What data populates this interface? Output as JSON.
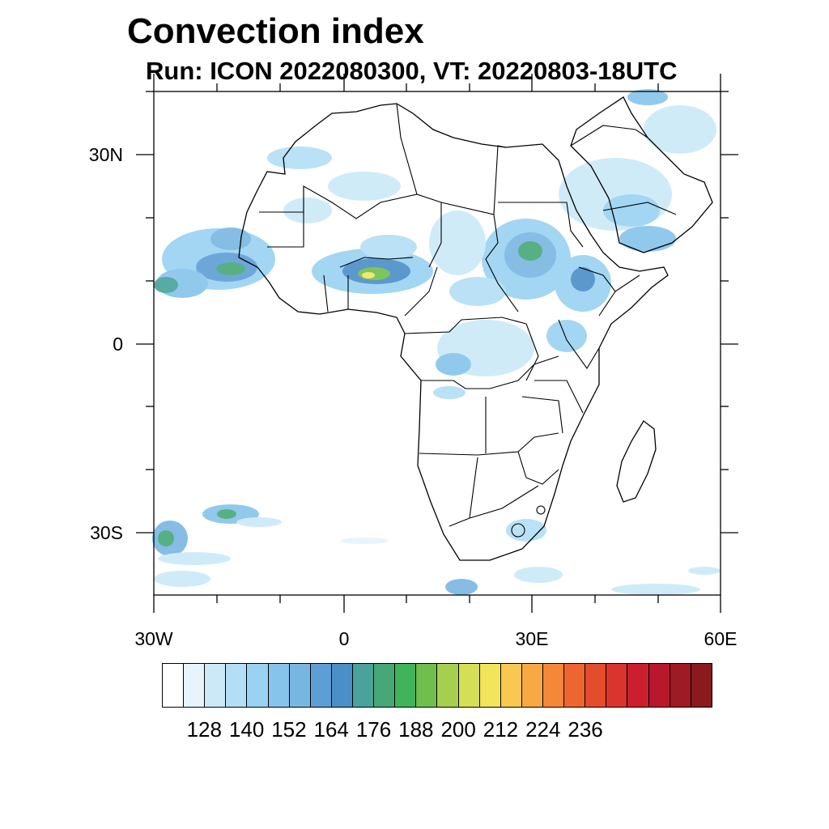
{
  "title": "Convection index",
  "subtitle": "Run: ICON 2022080300,  VT: 20220803-18UTC",
  "axes": {
    "lat_labels": [
      "30N",
      "0",
      "30S"
    ],
    "lon_labels": [
      "30W",
      "0",
      "30E",
      "60E"
    ]
  },
  "colorbar": {
    "labels": [
      "128",
      "140",
      "152",
      "164",
      "176",
      "188",
      "200",
      "212",
      "224",
      "236"
    ],
    "colors": [
      "#ffffff",
      "#e6f4fc",
      "#cce9f8",
      "#b3def5",
      "#99d2f2",
      "#86c4ec",
      "#78b6e2",
      "#5e9ed6",
      "#4a8fc8",
      "#47a39b",
      "#45a876",
      "#3fb45a",
      "#6fbe4e",
      "#a6cf4f",
      "#d5df55",
      "#f2e55b",
      "#f9c850",
      "#f7a943",
      "#f58838",
      "#ee6530",
      "#e34c2c",
      "#d9342e",
      "#cc1f2e",
      "#b8172d",
      "#9e1a24",
      "#8a1a1e"
    ]
  }
}
